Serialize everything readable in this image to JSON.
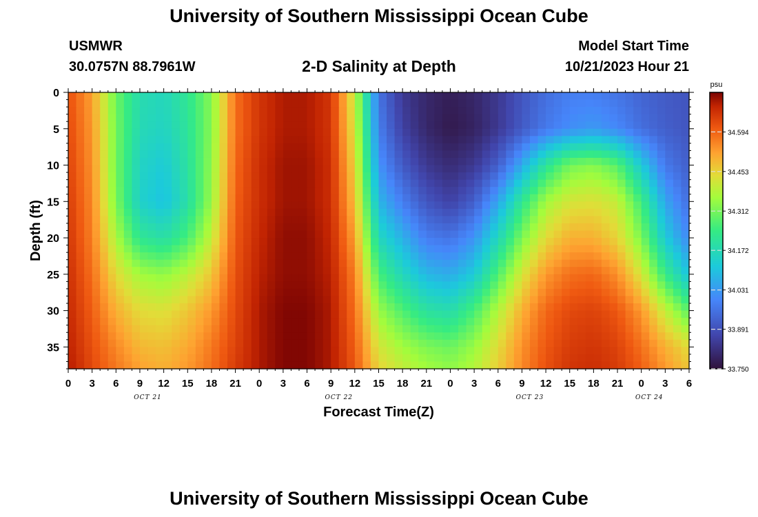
{
  "header": {
    "title": "University of Southern Mississippi Ocean Cube",
    "station": "USMWR",
    "coords": "30.0757N  88.7961W",
    "plot_title": "2-D Salinity at Depth",
    "model_start_label": "Model Start Time",
    "model_start_value": "10/21/2023 Hour 21"
  },
  "footer": {
    "title": "University of Southern Mississippi Ocean Cube"
  },
  "chart_data": {
    "type": "heatmap",
    "title": "2-D Salinity at Depth",
    "xlabel": "Forecast Time(Z)",
    "ylabel": "Depth (ft)",
    "x_tick_labels": [
      "0",
      "3",
      "6",
      "9",
      "12",
      "15",
      "18",
      "21",
      "0",
      "3",
      "6",
      "9",
      "12",
      "15",
      "18",
      "21",
      "0",
      "3",
      "6",
      "9",
      "12",
      "15",
      "18",
      "21",
      "0",
      "3",
      "6"
    ],
    "date_labels": [
      {
        "label": "OCT 21",
        "hour": 10
      },
      {
        "label": "OCT 22",
        "hour": 34
      },
      {
        "label": "OCT 23",
        "hour": 58
      },
      {
        "label": "OCT 24",
        "hour": 73
      }
    ],
    "xlim_hours": [
      0,
      78
    ],
    "y_ticks": [
      0,
      5,
      10,
      15,
      20,
      25,
      30,
      35
    ],
    "ylim": [
      0,
      38
    ],
    "y_inverted": true,
    "colorbar": {
      "unit": "psu",
      "min": 33.75,
      "max": 34.735,
      "tick_labels": [
        "34.594",
        "34.453",
        "34.312",
        "34.172",
        "34.031",
        "33.891",
        "33.750"
      ],
      "tick_values": [
        34.594,
        34.453,
        34.312,
        34.172,
        34.031,
        33.891,
        33.75
      ]
    },
    "depth_rows_ft": [
      0,
      5,
      10,
      15,
      20,
      25,
      30,
      35,
      38
    ],
    "time_cols_hours": [
      0,
      3,
      6,
      9,
      12,
      15,
      18,
      21,
      24,
      27,
      30,
      33,
      36,
      39,
      42,
      45,
      48,
      51,
      54,
      57,
      60,
      63,
      66,
      69,
      72,
      75,
      78
    ],
    "salinity_psu": [
      [
        34.62,
        34.52,
        34.3,
        34.18,
        34.16,
        34.22,
        34.33,
        34.58,
        34.66,
        34.7,
        34.7,
        34.66,
        34.4,
        33.96,
        33.84,
        33.8,
        33.78,
        33.8,
        33.84,
        33.9,
        33.95,
        33.98,
        33.98,
        33.96,
        33.93,
        33.91,
        33.9
      ],
      [
        34.63,
        34.53,
        34.31,
        34.17,
        34.15,
        34.21,
        34.33,
        34.58,
        34.66,
        34.7,
        34.7,
        34.66,
        34.42,
        33.98,
        33.86,
        33.8,
        33.77,
        33.79,
        33.84,
        33.91,
        33.97,
        34.01,
        34.03,
        34.0,
        33.95,
        33.92,
        33.9
      ],
      [
        34.64,
        34.54,
        34.31,
        34.15,
        34.12,
        34.2,
        34.34,
        34.59,
        34.67,
        34.71,
        34.71,
        34.67,
        34.45,
        34.02,
        33.91,
        33.84,
        33.81,
        33.84,
        33.92,
        34.06,
        34.21,
        34.31,
        34.33,
        34.28,
        34.12,
        33.97,
        33.92
      ],
      [
        34.65,
        34.55,
        34.32,
        34.14,
        34.1,
        34.19,
        34.35,
        34.6,
        34.67,
        34.71,
        34.71,
        34.67,
        34.48,
        34.08,
        33.98,
        33.9,
        33.86,
        33.92,
        34.05,
        34.22,
        34.36,
        34.42,
        34.43,
        34.4,
        34.25,
        34.05,
        33.95
      ],
      [
        34.66,
        34.56,
        34.37,
        34.22,
        34.19,
        34.26,
        34.4,
        34.61,
        34.68,
        34.72,
        34.72,
        34.68,
        34.52,
        34.16,
        34.07,
        33.98,
        33.96,
        34.02,
        34.16,
        34.32,
        34.44,
        34.5,
        34.5,
        34.45,
        34.32,
        34.12,
        34.0
      ],
      [
        34.67,
        34.58,
        34.44,
        34.36,
        34.34,
        34.39,
        34.47,
        34.62,
        34.69,
        34.72,
        34.72,
        34.69,
        34.56,
        34.26,
        34.16,
        34.08,
        34.06,
        34.12,
        34.27,
        34.42,
        34.53,
        34.58,
        34.59,
        34.54,
        34.42,
        34.24,
        34.1
      ],
      [
        34.68,
        34.6,
        34.5,
        34.44,
        34.43,
        34.47,
        34.53,
        34.63,
        34.7,
        34.73,
        34.73,
        34.7,
        34.58,
        34.35,
        34.27,
        34.2,
        34.18,
        34.26,
        34.38,
        34.5,
        34.59,
        34.63,
        34.64,
        34.61,
        34.53,
        34.4,
        34.28
      ],
      [
        34.69,
        34.62,
        34.55,
        34.49,
        34.48,
        34.51,
        34.57,
        34.64,
        34.7,
        34.73,
        34.73,
        34.7,
        34.6,
        34.42,
        34.36,
        34.32,
        34.3,
        34.35,
        34.44,
        34.54,
        34.61,
        34.65,
        34.66,
        34.64,
        34.58,
        34.5,
        34.44
      ],
      [
        34.7,
        34.63,
        34.57,
        34.52,
        34.5,
        34.53,
        34.58,
        34.65,
        34.7,
        34.73,
        34.73,
        34.7,
        34.61,
        34.45,
        34.4,
        34.36,
        34.34,
        34.38,
        34.46,
        34.55,
        34.62,
        34.66,
        34.67,
        34.65,
        34.6,
        34.53,
        34.47
      ]
    ]
  }
}
